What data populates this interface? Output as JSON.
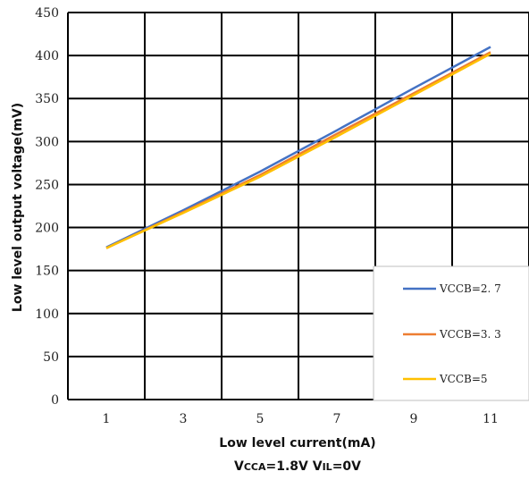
{
  "chart_data": {
    "type": "line",
    "title": "",
    "xlabel": "Low level current(mA)",
    "ylabel": "Low level output voltage(mV)",
    "caption": {
      "v1": "V",
      "sub1": "CCA",
      "eq1": "=1.8V V",
      "sub2": "IL",
      "eq2": "=0V"
    },
    "x": [
      1,
      3,
      5,
      7,
      9,
      11
    ],
    "x_tick_labels": [
      "1",
      "3",
      "5",
      "7",
      "9",
      "11"
    ],
    "xlim": [
      0,
      12
    ],
    "ylim": [
      0,
      450
    ],
    "y_ticks": [
      0,
      50,
      100,
      150,
      200,
      250,
      300,
      350,
      400,
      450
    ],
    "y_tick_labels": [
      "0",
      "50",
      "100",
      "150",
      "200",
      "250",
      "300",
      "350",
      "400",
      "450"
    ],
    "grid": true,
    "legend_position": "bottom-right",
    "series": [
      {
        "name": "VCCB=2. 7",
        "color": "#4472C4",
        "values": [
          177,
          220,
          265,
          313,
          362,
          410
        ]
      },
      {
        "name": "VCCB=3. 3",
        "color": "#ED7D31",
        "values": [
          176,
          218,
          261,
          309,
          356,
          404
        ]
      },
      {
        "name": "VCCB=5",
        "color": "#FFC000",
        "values": [
          176,
          217,
          259,
          306,
          354,
          402
        ]
      }
    ]
  }
}
